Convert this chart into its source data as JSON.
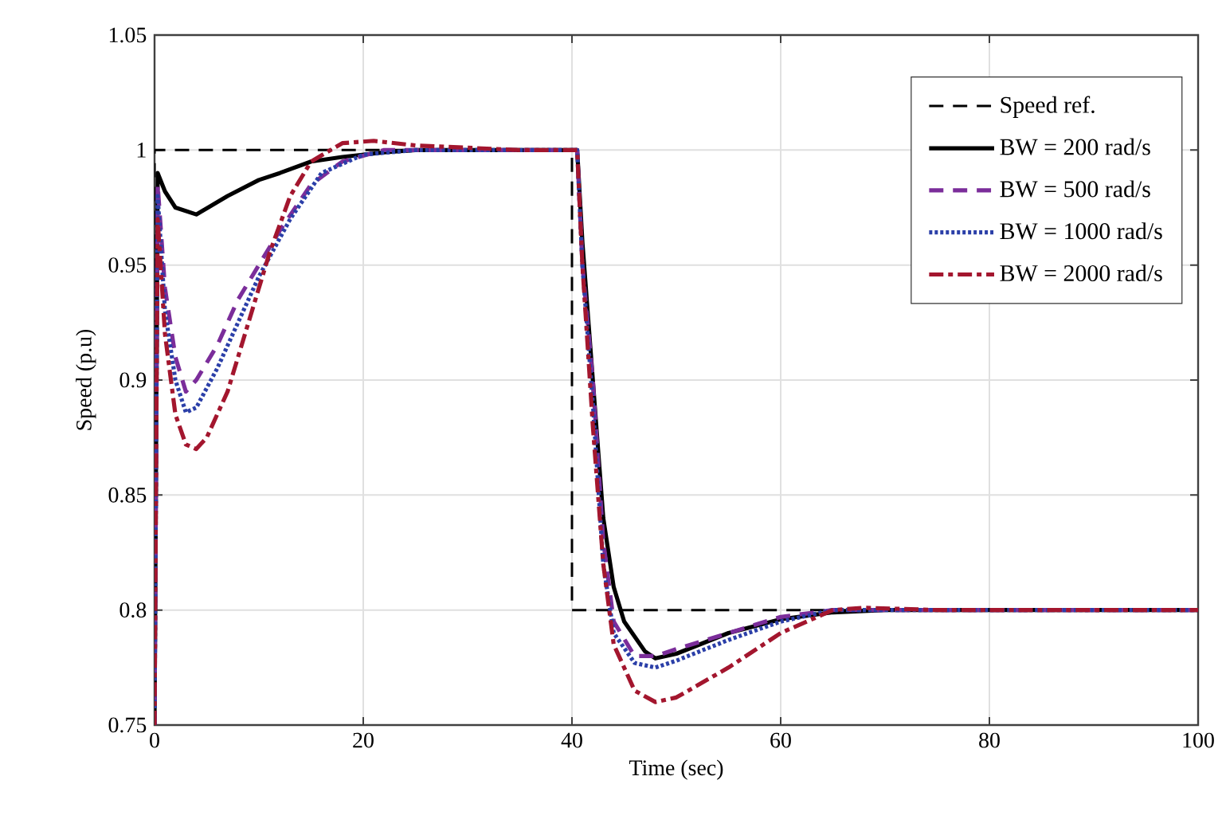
{
  "chart_data": {
    "type": "line",
    "xlabel": "Time (sec)",
    "ylabel": "Speed (p.u)",
    "xlim": [
      0,
      100
    ],
    "ylim": [
      0.75,
      1.05
    ],
    "xticks": [
      0,
      20,
      40,
      60,
      80,
      100
    ],
    "yticks": [
      0.75,
      0.8,
      0.85,
      0.9,
      0.95,
      1,
      1.05
    ],
    "grid": true,
    "legend": "top right",
    "series": [
      {
        "name": "Speed ref.",
        "color": "#000000",
        "line_style": "dashed",
        "x": [
          0,
          0,
          40,
          40,
          100
        ],
        "values": [
          0.75,
          1,
          1,
          0.8,
          0.8
        ]
      },
      {
        "name": "BW = 200 rad/s",
        "color": "#000000",
        "line_style": "solid",
        "x": [
          0,
          0.3,
          1,
          2,
          4,
          7,
          10,
          12,
          15,
          18,
          22,
          25,
          30,
          40,
          40.5,
          41,
          42,
          43,
          44,
          45,
          47,
          48,
          50,
          55,
          60,
          65,
          70,
          80,
          100
        ],
        "values": [
          0.75,
          0.99,
          0.982,
          0.975,
          0.972,
          0.98,
          0.987,
          0.99,
          0.995,
          0.997,
          0.999,
          1,
          1,
          1,
          1,
          0.96,
          0.9,
          0.84,
          0.81,
          0.795,
          0.782,
          0.779,
          0.781,
          0.79,
          0.796,
          0.799,
          0.8,
          0.8,
          0.8
        ]
      },
      {
        "name": "BW = 500 rad/s",
        "color": "#7b2d9a",
        "line_style": "dashed",
        "x": [
          0,
          0.3,
          1,
          2,
          3,
          4,
          6,
          8,
          10,
          12,
          15,
          18,
          22,
          30,
          40,
          40.5,
          41,
          42,
          43,
          44,
          46,
          48,
          50,
          55,
          60,
          65,
          80,
          100
        ],
        "values": [
          0.75,
          0.985,
          0.94,
          0.91,
          0.895,
          0.9,
          0.915,
          0.935,
          0.95,
          0.965,
          0.985,
          0.995,
          1,
          1,
          1,
          1,
          0.95,
          0.9,
          0.83,
          0.795,
          0.78,
          0.78,
          0.783,
          0.79,
          0.797,
          0.8,
          0.8,
          0.8
        ]
      },
      {
        "name": "BW = 1000 rad/s",
        "color": "#2b3fa8",
        "line_style": "dotted",
        "x": [
          0,
          0.3,
          1,
          2,
          3,
          4,
          6,
          8,
          10,
          13,
          16,
          20,
          25,
          30,
          40,
          40.5,
          41,
          42,
          43,
          44,
          46,
          48,
          50,
          55,
          60,
          65,
          80,
          100
        ],
        "values": [
          0.75,
          0.98,
          0.93,
          0.9,
          0.886,
          0.888,
          0.905,
          0.925,
          0.945,
          0.97,
          0.99,
          0.998,
          1,
          1,
          1,
          1,
          0.95,
          0.89,
          0.82,
          0.79,
          0.777,
          0.775,
          0.778,
          0.787,
          0.795,
          0.8,
          0.8,
          0.8
        ]
      },
      {
        "name": "BW = 2000 rad/s",
        "color": "#a3162e",
        "line_style": "dashdot",
        "x": [
          0,
          0.3,
          1,
          2,
          3,
          4,
          5,
          7,
          9,
          11,
          13,
          15,
          18,
          21,
          25,
          30,
          35,
          40,
          40.5,
          41,
          42,
          43,
          44,
          46,
          48,
          50,
          55,
          60,
          65,
          68,
          75,
          100
        ],
        "values": [
          0.75,
          0.97,
          0.92,
          0.885,
          0.872,
          0.87,
          0.875,
          0.895,
          0.925,
          0.955,
          0.98,
          0.995,
          1.003,
          1.004,
          1.002,
          1.001,
          1,
          1,
          1,
          0.95,
          0.88,
          0.82,
          0.785,
          0.765,
          0.76,
          0.762,
          0.775,
          0.79,
          0.8,
          0.801,
          0.8,
          0.8
        ]
      }
    ]
  }
}
